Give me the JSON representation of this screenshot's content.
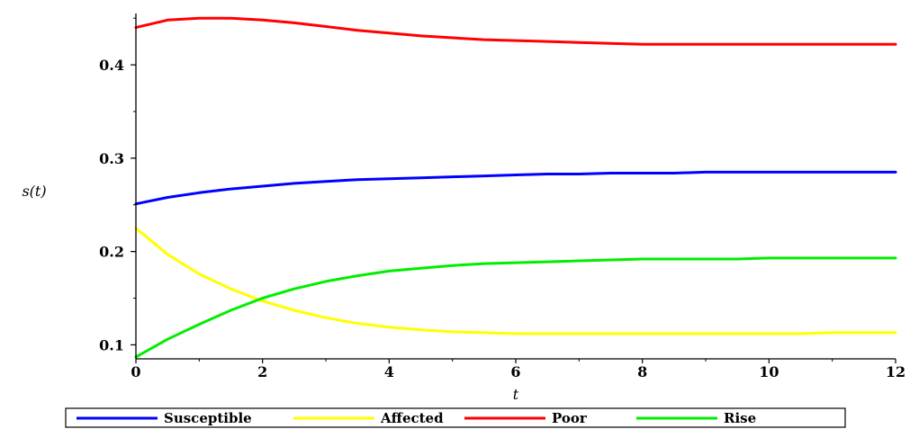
{
  "chart_data": {
    "type": "line",
    "title": "",
    "xlabel": "t",
    "ylabel": "s(t)",
    "xlim": [
      0,
      12
    ],
    "ylim": [
      0.085,
      0.455
    ],
    "x_ticks": [
      0,
      2,
      4,
      6,
      8,
      10,
      12
    ],
    "x_tick_labels": [
      "0",
      "2",
      "4",
      "6",
      "8",
      "10",
      "12"
    ],
    "y_ticks": [
      0.1,
      0.2,
      0.3,
      0.4
    ],
    "y_tick_labels": [
      "0.1",
      "0.2",
      "0.3",
      "0.4"
    ],
    "grid": false,
    "legend_position": "bottom",
    "x": [
      0,
      0.5,
      1,
      1.5,
      2,
      2.5,
      3,
      3.5,
      4,
      4.5,
      5,
      5.5,
      6,
      6.5,
      7,
      7.5,
      8,
      8.5,
      9,
      9.5,
      10,
      10.5,
      11,
      11.5,
      12
    ],
    "series": [
      {
        "name": "Susceptible",
        "color": "#0000ff",
        "values": [
          0.251,
          0.258,
          0.263,
          0.267,
          0.27,
          0.273,
          0.275,
          0.277,
          0.278,
          0.279,
          0.28,
          0.281,
          0.282,
          0.283,
          0.283,
          0.284,
          0.284,
          0.284,
          0.285,
          0.285,
          0.285,
          0.285,
          0.285,
          0.285,
          0.285
        ]
      },
      {
        "name": "Affected",
        "color": "#ffff00",
        "values": [
          0.225,
          0.197,
          0.176,
          0.16,
          0.147,
          0.137,
          0.129,
          0.123,
          0.119,
          0.116,
          0.114,
          0.113,
          0.112,
          0.112,
          0.112,
          0.112,
          0.112,
          0.112,
          0.112,
          0.112,
          0.112,
          0.112,
          0.113,
          0.113,
          0.113
        ]
      },
      {
        "name": "Poor",
        "color": "#ff0000",
        "values": [
          0.44,
          0.448,
          0.45,
          0.45,
          0.448,
          0.445,
          0.441,
          0.437,
          0.434,
          0.431,
          0.429,
          0.427,
          0.426,
          0.425,
          0.424,
          0.423,
          0.422,
          0.422,
          0.422,
          0.422,
          0.422,
          0.422,
          0.422,
          0.422,
          0.422
        ]
      },
      {
        "name": "Rise",
        "color": "#00ee00",
        "values": [
          0.087,
          0.106,
          0.122,
          0.137,
          0.15,
          0.16,
          0.168,
          0.174,
          0.179,
          0.182,
          0.185,
          0.187,
          0.188,
          0.189,
          0.19,
          0.191,
          0.192,
          0.192,
          0.192,
          0.192,
          0.193,
          0.193,
          0.193,
          0.193,
          0.193
        ]
      }
    ]
  }
}
